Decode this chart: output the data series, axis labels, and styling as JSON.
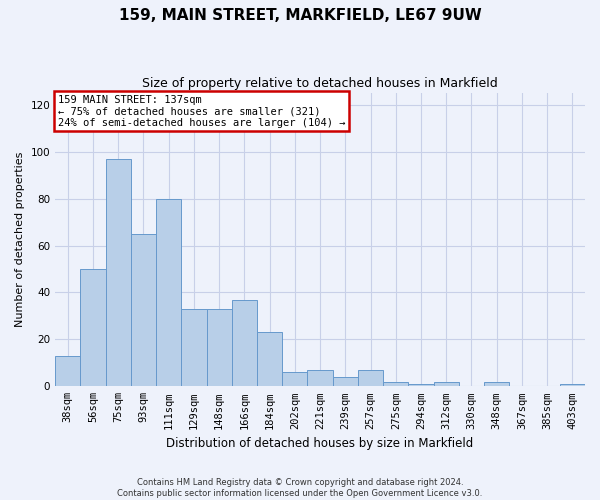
{
  "title": "159, MAIN STREET, MARKFIELD, LE67 9UW",
  "subtitle": "Size of property relative to detached houses in Markfield",
  "xlabel": "Distribution of detached houses by size in Markfield",
  "ylabel": "Number of detached properties",
  "categories": [
    "38sqm",
    "56sqm",
    "75sqm",
    "93sqm",
    "111sqm",
    "129sqm",
    "148sqm",
    "166sqm",
    "184sqm",
    "202sqm",
    "221sqm",
    "239sqm",
    "257sqm",
    "275sqm",
    "294sqm",
    "312sqm",
    "330sqm",
    "348sqm",
    "367sqm",
    "385sqm",
    "403sqm"
  ],
  "values": [
    13,
    50,
    97,
    65,
    80,
    33,
    33,
    37,
    23,
    6,
    7,
    4,
    7,
    2,
    1,
    2,
    0,
    2,
    0,
    0,
    1
  ],
  "bar_color": "#b8cfe8",
  "bar_edge_color": "#6699cc",
  "ylim": [
    0,
    125
  ],
  "yticks": [
    0,
    20,
    40,
    60,
    80,
    100,
    120
  ],
  "annotation_text": "159 MAIN STREET: 137sqm\n← 75% of detached houses are smaller (321)\n24% of semi-detached houses are larger (104) →",
  "annotation_box_color": "#ffffff",
  "annotation_box_edge_color": "#cc0000",
  "footer_line1": "Contains HM Land Registry data © Crown copyright and database right 2024.",
  "footer_line2": "Contains public sector information licensed under the Open Government Licence v3.0.",
  "background_color": "#eef2fb",
  "plot_background_color": "#eef2fb",
  "grid_color": "#c8d0e8",
  "title_fontsize": 11,
  "subtitle_fontsize": 9,
  "ylabel_fontsize": 8,
  "xlabel_fontsize": 8.5,
  "tick_fontsize": 7.5,
  "annot_fontsize": 7.5,
  "footer_fontsize": 6
}
